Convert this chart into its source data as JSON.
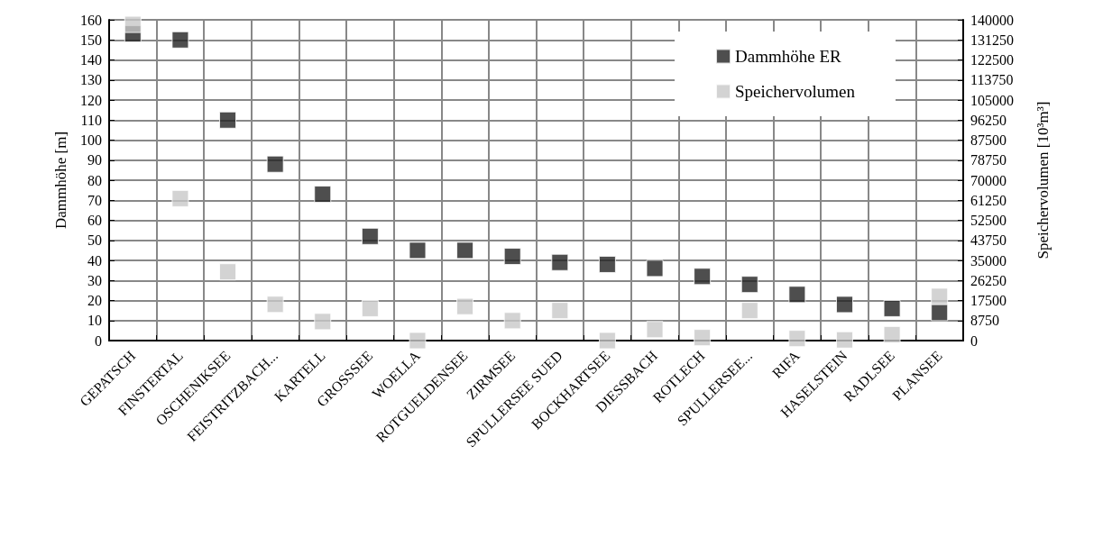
{
  "chart_data": {
    "type": "scatter",
    "ylabel": "Dammhöhe [m]",
    "y2label": "Speichervolumen [10³m³]",
    "categories": [
      "GEPATSCH",
      "FINSTERTAL",
      "OSCHENIKSEE",
      "FEISTRITZBACH...",
      "KARTELL",
      "GROSSSEE",
      "WOELLA",
      "ROTGUELDENSEE",
      "ZIRMSEE",
      "SPULLERSEE SUED",
      "BOCKHARTSEE",
      "DIESSBACH",
      "ROTLECH",
      "SPULLERSEE...",
      "RIFA",
      "HASELSTEIN",
      "RADLSEE",
      "PLANSEE"
    ],
    "series": [
      {
        "name": "Dammhöhe ER",
        "color": "#222222",
        "values": [
          153,
          150,
          110,
          88,
          73,
          52,
          45,
          45,
          42,
          39,
          38,
          36,
          32,
          28,
          23,
          18,
          16,
          14
        ]
      },
      {
        "name": "Speichervolumen",
        "color": "#c8c8c8",
        "axis": "y2",
        "values": [
          138000,
          62000,
          30000,
          15800,
          8300,
          14000,
          0,
          14900,
          8700,
          13100,
          0,
          4800,
          1300,
          13100,
          900,
          300,
          2600,
          19300
        ]
      }
    ],
    "ylim": [
      0,
      160
    ],
    "yticks": [
      0,
      10,
      20,
      30,
      40,
      50,
      60,
      70,
      80,
      90,
      100,
      110,
      120,
      130,
      140,
      150,
      160
    ],
    "y2lim": [
      0,
      140000
    ],
    "y2ticks": [
      0,
      8750,
      17500,
      26250,
      35000,
      43750,
      52500,
      61250,
      70000,
      78750,
      87500,
      96250,
      105000,
      113750,
      122500,
      131250,
      140000
    ],
    "grid": true,
    "legend": "top right",
    "marker": "square"
  }
}
